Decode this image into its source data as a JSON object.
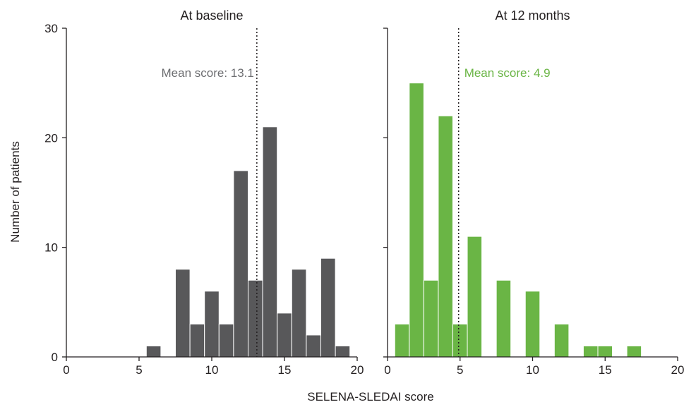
{
  "chart_data": {
    "type": "bar",
    "ylabel": "Number of patients",
    "xlabel": "SELENA-SLEDAI score",
    "ylim": [
      0,
      30
    ],
    "xlim": [
      0,
      20
    ],
    "y_ticks": [
      0,
      10,
      20,
      30
    ],
    "x_ticks": [
      0,
      5,
      10,
      15,
      20
    ],
    "bin_width": 1,
    "panels": [
      {
        "title": "At baseline",
        "color": "#58585a",
        "mean_value": 13.1,
        "mean_label": "Mean score: 13.1",
        "mean_label_color": "#6d6e71",
        "mean_label_side": "left",
        "bins": [
          5.5,
          7.5,
          8.5,
          9.5,
          10.5,
          11.5,
          12.5,
          13.5,
          14.5,
          15.5,
          16.5,
          17.5,
          18.5
        ],
        "values": [
          1,
          8,
          3,
          6,
          3,
          17,
          7,
          21,
          4,
          8,
          2,
          9,
          1
        ]
      },
      {
        "title": "At 12 months",
        "color": "#6ab545",
        "mean_value": 4.9,
        "mean_label": "Mean score: 4.9",
        "mean_label_color": "#6ab545",
        "mean_label_side": "right",
        "bins": [
          0.5,
          1.5,
          2.5,
          3.5,
          4.5,
          5.5,
          7.5,
          9.5,
          11.5,
          13.5,
          14.5,
          16.5
        ],
        "values": [
          3,
          25,
          7,
          22,
          3,
          11,
          7,
          6,
          3,
          1,
          1,
          1
        ]
      }
    ]
  }
}
